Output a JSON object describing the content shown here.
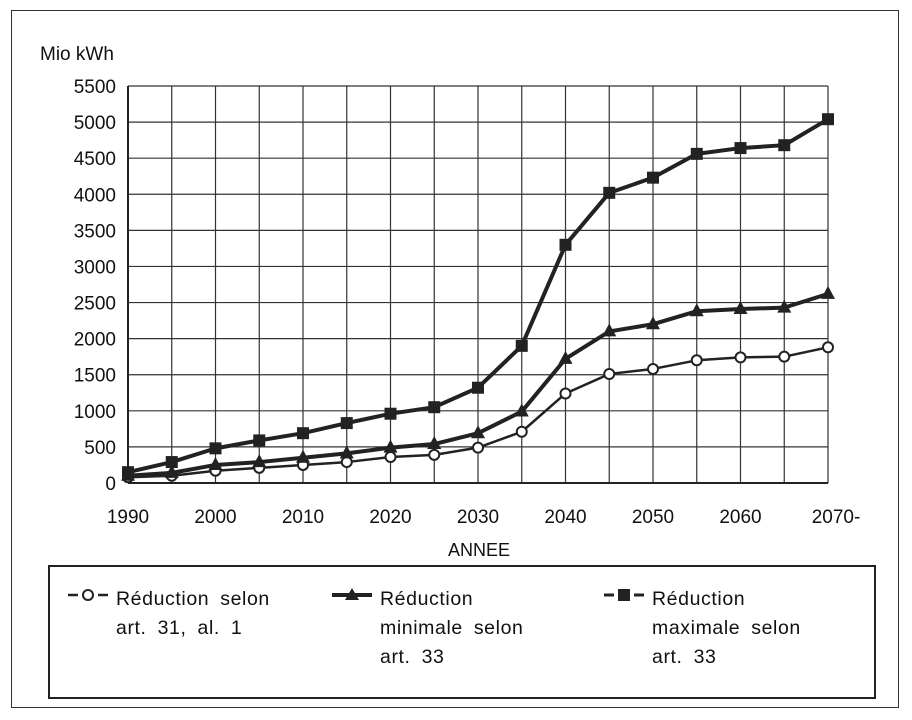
{
  "chart_data": {
    "type": "line",
    "ylabel": "Mio kWh",
    "xlabel": "ANNEE",
    "x": [
      1990,
      1995,
      2000,
      2005,
      2010,
      2015,
      2020,
      2025,
      2030,
      2035,
      2040,
      2045,
      2050,
      2055,
      2060,
      2065,
      2070
    ],
    "xticks": [
      "1990",
      "2000",
      "2010",
      "2020",
      "2030",
      "2040",
      "2050",
      "2060",
      "2070-"
    ],
    "yticks": [
      "0",
      "500",
      "1000",
      "1500",
      "2000",
      "2500",
      "3000",
      "3500",
      "4000",
      "4500",
      "5000",
      "5500"
    ],
    "ylim": [
      0,
      5500
    ],
    "xlim": [
      1990,
      2070
    ],
    "grid": true,
    "legend_position": "bottom",
    "series": [
      {
        "name": "Réduction selon art. 31, al. 1",
        "marker": "open-circle",
        "values": [
          80,
          100,
          170,
          210,
          250,
          290,
          360,
          390,
          490,
          710,
          1240,
          1510,
          1580,
          1700,
          1740,
          1750,
          1880
        ]
      },
      {
        "name": "Réduction minimale selon art. 33",
        "marker": "filled-triangle",
        "values": [
          100,
          140,
          250,
          290,
          350,
          410,
          490,
          540,
          690,
          990,
          1720,
          2100,
          2200,
          2380,
          2410,
          2430,
          2620
        ]
      },
      {
        "name": "Réduction maximale selon art. 33",
        "marker": "filled-square",
        "values": [
          150,
          290,
          480,
          590,
          690,
          830,
          960,
          1050,
          1320,
          1900,
          3300,
          4020,
          4230,
          4560,
          4640,
          4680,
          5040
        ]
      }
    ]
  },
  "legend": {
    "items": [
      {
        "text": "Réduction selon\nart. 31, al. 1"
      },
      {
        "text": "Réduction\nminimale selon\nart. 33"
      },
      {
        "text": "Réduction\nmaximale selon\nart. 33"
      }
    ]
  },
  "colors": {
    "line": "#222222",
    "grid": "#333333",
    "background": "#ffffff"
  }
}
